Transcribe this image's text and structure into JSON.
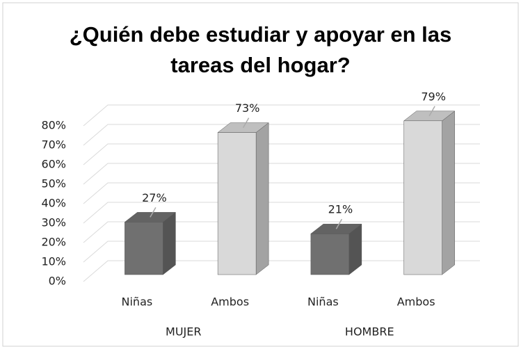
{
  "chart_data": {
    "type": "bar3d",
    "title": "¿Quién debe estudiar y apoyar en las tareas del hogar?",
    "categories": [
      "Niñas",
      "Ambos"
    ],
    "colors": [
      "#707070",
      "#d9d9d9"
    ],
    "groups": [
      {
        "name": "MUJER",
        "values": [
          27,
          73
        ],
        "value_labels": [
          "27%",
          "73%"
        ]
      },
      {
        "name": "HOMBRE",
        "values": [
          21,
          79
        ],
        "value_labels": [
          "21%",
          "79%"
        ]
      }
    ],
    "ylim": [
      0,
      80
    ],
    "yticks": [
      {
        "value": 0,
        "label": "0%"
      },
      {
        "value": 10,
        "label": "10%"
      },
      {
        "value": 20,
        "label": "20%"
      },
      {
        "value": 30,
        "label": "30%"
      },
      {
        "value": 40,
        "label": "40%"
      },
      {
        "value": 50,
        "label": "50%"
      },
      {
        "value": 60,
        "label": "60%"
      },
      {
        "value": 70,
        "label": "70%"
      },
      {
        "value": 80,
        "label": "80%"
      }
    ],
    "grid": true
  }
}
